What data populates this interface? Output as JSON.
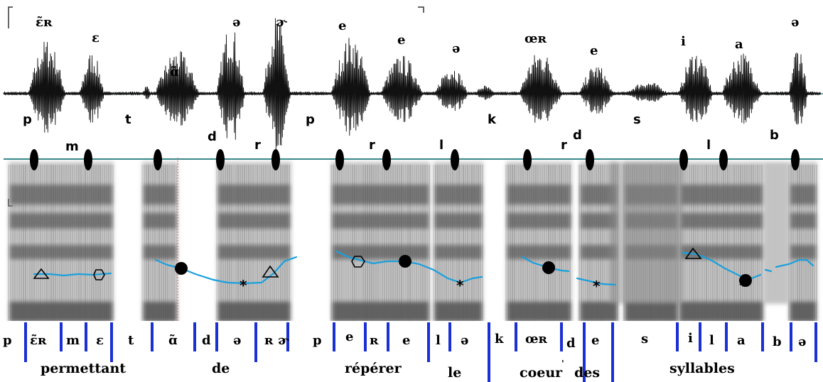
{
  "vowels_top": [
    "ɛ̃ʀ",
    "ɛ",
    "ɑ̃",
    "ə",
    "ɚ",
    "e",
    "e",
    "ə",
    "œʀ",
    "e",
    "i",
    "a",
    "ə"
  ],
  "consonants": [
    "p",
    "m",
    "t",
    "d",
    "r",
    "p",
    "r",
    "l",
    "k",
    "r",
    "d",
    "s",
    "l",
    "b"
  ],
  "segments": [
    "p",
    "ɛ̃ʀ",
    "m",
    "ɛ",
    "t",
    "ɑ̃",
    "d",
    "ə",
    "ʀ ɚ",
    "p",
    "e",
    "ʀ",
    "e",
    "l",
    "ə",
    "k",
    "œʀ",
    "d",
    "e",
    "s",
    "i",
    "l",
    "a",
    "b",
    "ə"
  ],
  "words": [
    "permettant",
    "de",
    "répérer",
    "le",
    "coeur",
    "des",
    "syllables"
  ],
  "stars": [
    "*",
    "*",
    "*",
    "*"
  ],
  "colors": {
    "pitch": "#1aa0dc",
    "boundary": "#1a2fd4",
    "baseline": "#3a8a8a",
    "waveform": "#111111"
  }
}
